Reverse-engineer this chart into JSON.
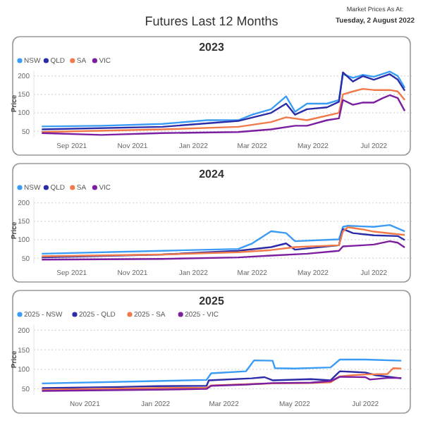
{
  "chart_data": [
    {
      "type": "line",
      "title": "2023",
      "annotations": [
        "Futures Last 12 Months",
        "Market Prices As At:",
        "Tuesday, 2 August 2022"
      ],
      "ylabel": "Price",
      "legend": "top left",
      "grid": "y",
      "ylim": [
        35,
        215
      ],
      "yticks": [
        50,
        100,
        150,
        200
      ],
      "xlim": [
        "2021-07-25",
        "2022-08-08"
      ],
      "xticks": [
        {
          "value": "2021-09-01",
          "label": "Sep 2021"
        },
        {
          "value": "2021-11-01",
          "label": "Nov 2021"
        },
        {
          "value": "2022-01-01",
          "label": "Jan 2022"
        },
        {
          "value": "2022-03-01",
          "label": "Mar 2022"
        },
        {
          "value": "2022-05-01",
          "label": "May 2022"
        },
        {
          "value": "2022-07-01",
          "label": "Jul 2022"
        }
      ],
      "series": [
        {
          "name": "NSW",
          "color": "#3a9cf5",
          "x": [
            "2021-08-02",
            "2021-10-01",
            "2021-12-01",
            "2022-01-15",
            "2022-02-15",
            "2022-03-01",
            "2022-03-20",
            "2022-04-04",
            "2022-04-13",
            "2022-04-25",
            "2022-05-15",
            "2022-05-27",
            "2022-05-31",
            "2022-06-10",
            "2022-06-20",
            "2022-07-01",
            "2022-07-17",
            "2022-07-25",
            "2022-08-01"
          ],
          "values": [
            63,
            65,
            70,
            80,
            80,
            95,
            110,
            145,
            103,
            125,
            125,
            135,
            205,
            195,
            203,
            198,
            212,
            200,
            168
          ]
        },
        {
          "name": "QLD",
          "color": "#2b2ca8",
          "x": [
            "2021-08-02",
            "2021-12-01",
            "2022-02-15",
            "2022-03-20",
            "2022-04-04",
            "2022-04-13",
            "2022-04-25",
            "2022-05-15",
            "2022-05-27",
            "2022-05-31",
            "2022-06-10",
            "2022-06-20",
            "2022-07-01",
            "2022-07-17",
            "2022-07-25",
            "2022-08-01"
          ],
          "values": [
            55,
            62,
            78,
            100,
            125,
            95,
            110,
            115,
            130,
            210,
            185,
            200,
            190,
            205,
            190,
            160
          ]
        },
        {
          "name": "SA",
          "color": "#f07a4a",
          "x": [
            "2021-08-02",
            "2021-12-01",
            "2022-02-15",
            "2022-03-20",
            "2022-04-04",
            "2022-04-25",
            "2022-05-27",
            "2022-05-31",
            "2022-06-10",
            "2022-06-20",
            "2022-07-01",
            "2022-07-17",
            "2022-07-25",
            "2022-08-01"
          ],
          "values": [
            48,
            55,
            62,
            75,
            88,
            80,
            100,
            150,
            158,
            165,
            162,
            162,
            158,
            135
          ]
        },
        {
          "name": "VIC",
          "color": "#7b1fa0",
          "x": [
            "2021-08-02",
            "2021-10-01",
            "2021-12-01",
            "2022-02-15",
            "2022-03-20",
            "2022-04-13",
            "2022-04-25",
            "2022-05-15",
            "2022-05-27",
            "2022-05-31",
            "2022-06-10",
            "2022-06-20",
            "2022-07-01",
            "2022-07-10",
            "2022-07-17",
            "2022-07-25",
            "2022-08-01"
          ],
          "values": [
            45,
            40,
            45,
            48,
            55,
            65,
            65,
            80,
            85,
            135,
            122,
            128,
            128,
            140,
            148,
            140,
            105
          ]
        }
      ]
    },
    {
      "type": "line",
      "title": "2024",
      "ylabel": "Price",
      "legend": "top left",
      "grid": "y",
      "ylim": [
        35,
        215
      ],
      "yticks": [
        50,
        100,
        150,
        200
      ],
      "xlim": [
        "2021-07-25",
        "2022-08-08"
      ],
      "xticks": [
        {
          "value": "2021-09-01",
          "label": "Sep 2021"
        },
        {
          "value": "2021-11-01",
          "label": "Nov 2021"
        },
        {
          "value": "2022-01-01",
          "label": "Jan 2022"
        },
        {
          "value": "2022-03-01",
          "label": "Mar 2022"
        },
        {
          "value": "2022-05-01",
          "label": "May 2022"
        },
        {
          "value": "2022-07-01",
          "label": "Jul 2022"
        }
      ],
      "series": [
        {
          "name": "NSW",
          "color": "#3a9cf5",
          "x": [
            "2021-08-02",
            "2021-12-01",
            "2022-02-15",
            "2022-03-01",
            "2022-03-20",
            "2022-04-04",
            "2022-04-13",
            "2022-05-27",
            "2022-05-31",
            "2022-06-05",
            "2022-07-01",
            "2022-07-17",
            "2022-08-01"
          ],
          "values": [
            62,
            70,
            75,
            90,
            123,
            118,
            96,
            101,
            135,
            138,
            135,
            140,
            123
          ]
        },
        {
          "name": "QLD",
          "color": "#2b2ca8",
          "x": [
            "2021-08-02",
            "2021-12-01",
            "2022-02-15",
            "2022-03-20",
            "2022-04-04",
            "2022-04-13",
            "2022-05-27",
            "2022-05-31",
            "2022-06-10",
            "2022-07-01",
            "2022-07-25",
            "2022-08-01"
          ],
          "values": [
            52,
            60,
            70,
            80,
            90,
            73,
            85,
            129,
            118,
            112,
            110,
            99
          ]
        },
        {
          "name": "SA",
          "color": "#f07a4a",
          "x": [
            "2021-08-02",
            "2021-12-01",
            "2022-02-15",
            "2022-03-20",
            "2022-04-13",
            "2022-05-27",
            "2022-05-31",
            "2022-06-05",
            "2022-06-20",
            "2022-07-01",
            "2022-07-25",
            "2022-08-01"
          ],
          "values": [
            55,
            60,
            66,
            72,
            80,
            85,
            123,
            134,
            128,
            122,
            115,
            113
          ]
        },
        {
          "name": "VIC",
          "color": "#7b1fa0",
          "x": [
            "2021-08-02",
            "2021-12-01",
            "2022-02-15",
            "2022-03-20",
            "2022-04-25",
            "2022-05-27",
            "2022-05-31",
            "2022-06-20",
            "2022-07-01",
            "2022-07-17",
            "2022-07-25",
            "2022-08-01"
          ],
          "values": [
            46,
            48,
            52,
            57,
            62,
            70,
            82,
            85,
            87,
            96,
            92,
            79
          ]
        }
      ]
    },
    {
      "type": "line",
      "title": "2025",
      "ylabel": "Price",
      "legend": "top left",
      "grid": "y",
      "ylim": [
        35,
        215
      ],
      "yticks": [
        50,
        100,
        150,
        200
      ],
      "xlim": [
        "2021-09-18",
        "2022-08-10"
      ],
      "xticks": [
        {
          "value": "2021-11-01",
          "label": "Nov 2021"
        },
        {
          "value": "2022-01-01",
          "label": "Jan 2022"
        },
        {
          "value": "2022-03-01",
          "label": "Mar 2022"
        },
        {
          "value": "2022-05-01",
          "label": "May 2022"
        },
        {
          "value": "2022-07-01",
          "label": "Jul 2022"
        }
      ],
      "series": [
        {
          "name": "2025 - NSW",
          "color": "#3a9cf5",
          "x": [
            "2021-09-25",
            "2022-01-01",
            "2022-02-14",
            "2022-02-18",
            "2022-03-20",
            "2022-03-27",
            "2022-04-12",
            "2022-04-14",
            "2022-05-01",
            "2022-06-01",
            "2022-06-09",
            "2022-07-01",
            "2022-08-01"
          ],
          "values": [
            64,
            70,
            73,
            90,
            95,
            123,
            122,
            103,
            102,
            105,
            125,
            125,
            122
          ]
        },
        {
          "name": "2025 - QLD",
          "color": "#2b2ca8",
          "x": [
            "2021-09-25",
            "2021-12-01",
            "2022-01-01",
            "2022-02-14",
            "2022-02-16",
            "2022-03-25",
            "2022-04-05",
            "2022-04-12",
            "2022-05-15",
            "2022-06-01",
            "2022-06-09",
            "2022-07-01",
            "2022-07-10",
            "2022-08-01"
          ],
          "values": [
            52,
            55,
            57,
            58,
            72,
            77,
            80,
            72,
            75,
            72,
            95,
            92,
            85,
            77
          ]
        },
        {
          "name": "2025 - SA",
          "color": "#f07a4a",
          "x": [
            "2021-09-25",
            "2022-01-01",
            "2022-02-14",
            "2022-02-18",
            "2022-03-20",
            "2022-04-12",
            "2022-05-15",
            "2022-06-01",
            "2022-06-09",
            "2022-06-20",
            "2022-07-01",
            "2022-07-20",
            "2022-07-25",
            "2022-08-01"
          ],
          "values": [
            48,
            52,
            53,
            59,
            62,
            64,
            65,
            67,
            82,
            85,
            87,
            88,
            103,
            102
          ]
        },
        {
          "name": "2025 - VIC",
          "color": "#7b1fa0",
          "x": [
            "2021-09-25",
            "2022-01-01",
            "2022-02-14",
            "2022-02-18",
            "2022-03-20",
            "2022-04-12",
            "2022-05-15",
            "2022-06-01",
            "2022-06-09",
            "2022-07-01",
            "2022-07-05",
            "2022-07-20",
            "2022-08-01"
          ],
          "values": [
            45,
            48,
            50,
            58,
            61,
            65,
            66,
            70,
            81,
            80,
            74,
            78,
            78
          ]
        }
      ]
    }
  ]
}
